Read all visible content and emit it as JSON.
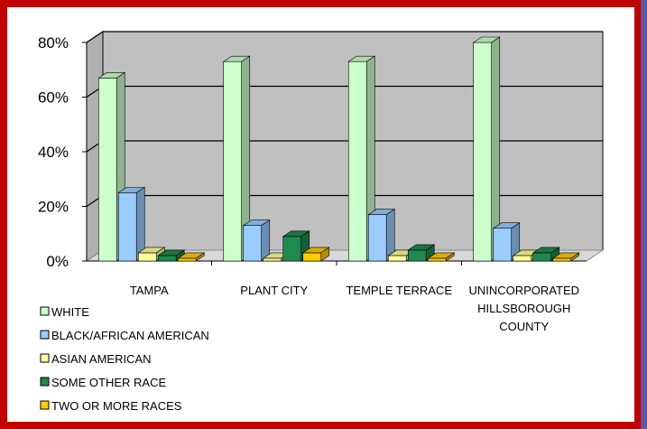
{
  "chart_data": {
    "type": "bar",
    "categories": [
      [
        "TAMPA"
      ],
      [
        "PLANT CITY"
      ],
      [
        "TEMPLE TERRACE"
      ],
      [
        "UNINCORPORATED",
        "HILLSBOROUGH",
        "COUNTY"
      ]
    ],
    "series": [
      {
        "name": "WHITE",
        "values": [
          67,
          73,
          73,
          80
        ],
        "color": "#ccffcc"
      },
      {
        "name": "BLACK/AFRICAN AMERICAN",
        "values": [
          25,
          13,
          17,
          12
        ],
        "color": "#99ccff"
      },
      {
        "name": "ASIAN AMERICAN",
        "values": [
          3,
          1,
          2,
          2
        ],
        "color": "#ffff99"
      },
      {
        "name": "SOME OTHER RACE",
        "values": [
          2,
          9,
          4,
          3
        ],
        "color": "#1e8a4e"
      },
      {
        "name": "TWO OR MORE RACES",
        "values": [
          1,
          3,
          1,
          1
        ],
        "color": "#ffcc00"
      }
    ],
    "y_ticks": [
      "0%",
      "20%",
      "40%",
      "60%",
      "80%"
    ],
    "ylim": [
      0,
      80
    ],
    "grid": true,
    "legend_position": "bottom-left",
    "wall_color": "#c0c0c0",
    "border_color": "#c00000"
  }
}
